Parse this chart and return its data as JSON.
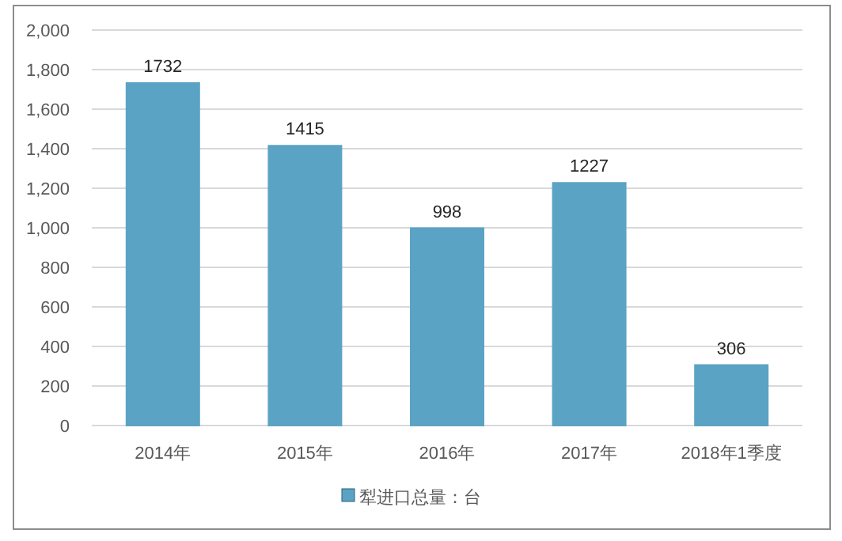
{
  "chart_data": {
    "type": "bar",
    "categories": [
      "2014年",
      "2015年",
      "2016年",
      "2017年",
      "2018年1季度"
    ],
    "series": [
      {
        "name": "犁进口总量：台",
        "color": "#5ba3c4",
        "values": [
          1732,
          1415,
          998,
          1227,
          306
        ]
      }
    ],
    "ylim": [
      0,
      2000
    ],
    "yticks": [
      0,
      {
        "value": 200,
        "label": "200"
      },
      {
        "value": 400,
        "label": "400"
      },
      {
        "value": 600,
        "label": "600"
      },
      {
        "value": 800,
        "label": "800"
      },
      {
        "value": 1000,
        "label": "1,000"
      },
      {
        "value": 1200,
        "label": "1,200"
      },
      {
        "value": 1400,
        "label": "1,400"
      },
      {
        "value": 1600,
        "label": "1,600"
      },
      {
        "value": 1800,
        "label": "1,800"
      },
      {
        "value": 2000,
        "label": "2,000"
      }
    ],
    "grid": "y",
    "legend": "bottom",
    "data_labels": true
  }
}
